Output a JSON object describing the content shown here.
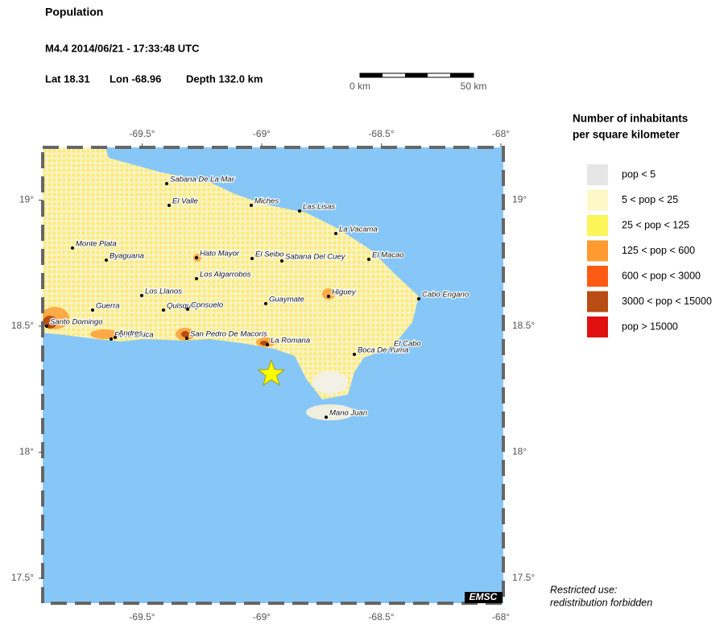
{
  "header": {
    "title": "Population",
    "event": "M4.4  2014/06/21 - 17:33:48 UTC",
    "lat_label": "Lat 18.31",
    "lon_label": "Lon -68.96",
    "depth_label": "Depth 132.0 km",
    "lat": 18.31,
    "lon": -68.96
  },
  "scale_bar": {
    "start": "0 km",
    "end": "50 km"
  },
  "map": {
    "lon_ticks": [
      {
        "value": -69.5,
        "label": "-69.5°"
      },
      {
        "value": -69,
        "label": "-69°"
      },
      {
        "value": -68.5,
        "label": "-68.5°"
      },
      {
        "value": -68,
        "label": "-68°"
      }
    ],
    "lat_ticks": [
      {
        "value": 19,
        "label": "19°"
      },
      {
        "value": 18.5,
        "label": "18.5°"
      },
      {
        "value": 18,
        "label": "18°"
      },
      {
        "value": 17.5,
        "label": "17.5°"
      }
    ],
    "cities": [
      "Sabana De La Mar",
      "El Valle",
      "Miches",
      "Las Lisas",
      "La Vacama",
      "El Macao",
      "Monte Plata",
      "Byaguana",
      "Hato Mayor",
      "El Seibo",
      "Sabana Del Cuey",
      "Los Algarrobos",
      "Higuey",
      "Cabo Engano",
      "Los Llanos",
      "Guaymate",
      "Guerra",
      "Quisqueya",
      "Consuelo",
      "Santo Domingo",
      "Boca Chica",
      "Andres",
      "San Pedro De Macoris",
      "La Romana",
      "El Cabo",
      "Boca De Yuma",
      "Mano Juan"
    ],
    "badge": "EMSC"
  },
  "legend": {
    "title": [
      "Number of inhabitants",
      "per square kilometer"
    ],
    "items": [
      {
        "label": "pop < 5",
        "color": "#e6e6e6"
      },
      {
        "label": "5 < pop < 25",
        "color": "#fcf8c8"
      },
      {
        "label": "25 < pop < 125",
        "color": "#fcf55a"
      },
      {
        "label": "125 < pop < 600",
        "color": "#fd9a30"
      },
      {
        "label": "600 < pop < 3000",
        "color": "#fd5a14"
      },
      {
        "label": "3000 < pop < 15000",
        "color": "#b84c12"
      },
      {
        "label": "pop > 15000",
        "color": "#e01010"
      }
    ]
  },
  "note": [
    "Restricted use:",
    "redistribution forbidden"
  ]
}
